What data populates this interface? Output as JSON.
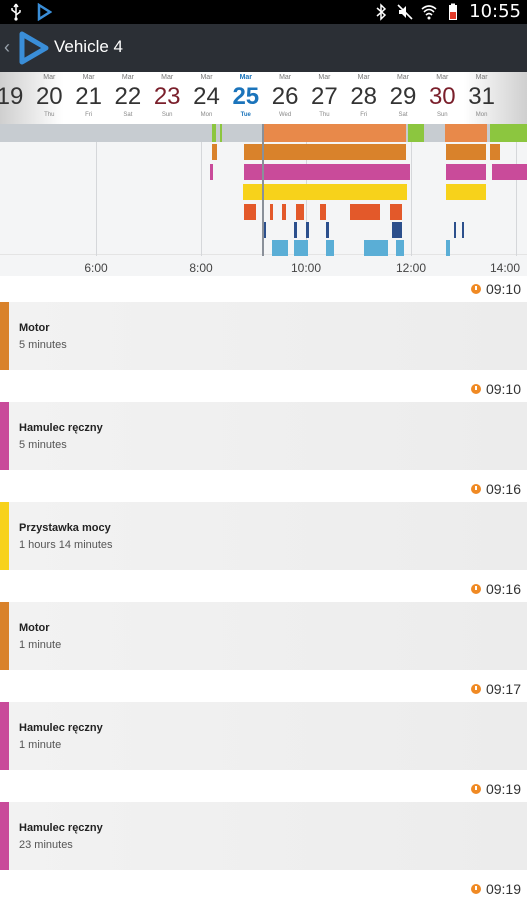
{
  "status_bar": {
    "time": "10:55",
    "icons": [
      "usb-icon",
      "app-logo-icon",
      "bluetooth-icon",
      "mute-icon",
      "wifi-icon",
      "battery-icon"
    ]
  },
  "action_bar": {
    "title": "Vehicle 4",
    "icons": [
      "back-chevron-icon",
      "app-logo-icon"
    ]
  },
  "date_strip": {
    "dates": [
      {
        "month": "",
        "day": "19",
        "dow": ""
      },
      {
        "month": "Mar",
        "day": "20",
        "dow": "Thu"
      },
      {
        "month": "Mar",
        "day": "21",
        "dow": "Fri"
      },
      {
        "month": "Mar",
        "day": "22",
        "dow": "Sat"
      },
      {
        "month": "Mar",
        "day": "23",
        "dow": "Sun",
        "weekend": true
      },
      {
        "month": "Mar",
        "day": "24",
        "dow": "Mon"
      },
      {
        "month": "Mar",
        "day": "25",
        "dow": "Tue",
        "selected": true
      },
      {
        "month": "Mar",
        "day": "26",
        "dow": "Wed"
      },
      {
        "month": "Mar",
        "day": "27",
        "dow": "Thu"
      },
      {
        "month": "Mar",
        "day": "28",
        "dow": "Fri"
      },
      {
        "month": "Mar",
        "day": "29",
        "dow": "Sat"
      },
      {
        "month": "Mar",
        "day": "30",
        "dow": "Sun",
        "weekend": true
      },
      {
        "month": "Mar",
        "day": "31",
        "dow": "Mon"
      }
    ]
  },
  "timeline": {
    "axis_labels": [
      "6:00",
      "8:00",
      "10:00",
      "12:00",
      "14:00"
    ],
    "colors": {
      "green": "#8cc63f",
      "orange": "#e8894a",
      "dark_orange": "#d9822b",
      "magenta": "#c94b9a",
      "yellow": "#f7d21b",
      "red_orange": "#e3592a",
      "navy": "#2c4f8c",
      "light_blue": "#5aaed6",
      "grey": "#c7ccd1"
    }
  },
  "events": [
    {
      "time": "09:10",
      "name": "Motor",
      "duration": "5 minutes",
      "color": "#d9822b"
    },
    {
      "time": "09:10",
      "name": "Hamulec ręczny",
      "duration": "5 minutes",
      "color": "#c94b9a"
    },
    {
      "time": "09:16",
      "name": "Przystawka mocy",
      "duration": "1 hours 14 minutes",
      "color": "#f7d21b"
    },
    {
      "time": "09:16",
      "name": "Motor",
      "duration": "1 minute",
      "color": "#d9822b"
    },
    {
      "time": "09:17",
      "name": "Hamulec ręczny",
      "duration": "1 minute",
      "color": "#c94b9a"
    },
    {
      "time": "09:19",
      "name": "Hamulec ręczny",
      "duration": "23 minutes",
      "color": "#c94b9a"
    }
  ],
  "trailing_time": "09:19"
}
